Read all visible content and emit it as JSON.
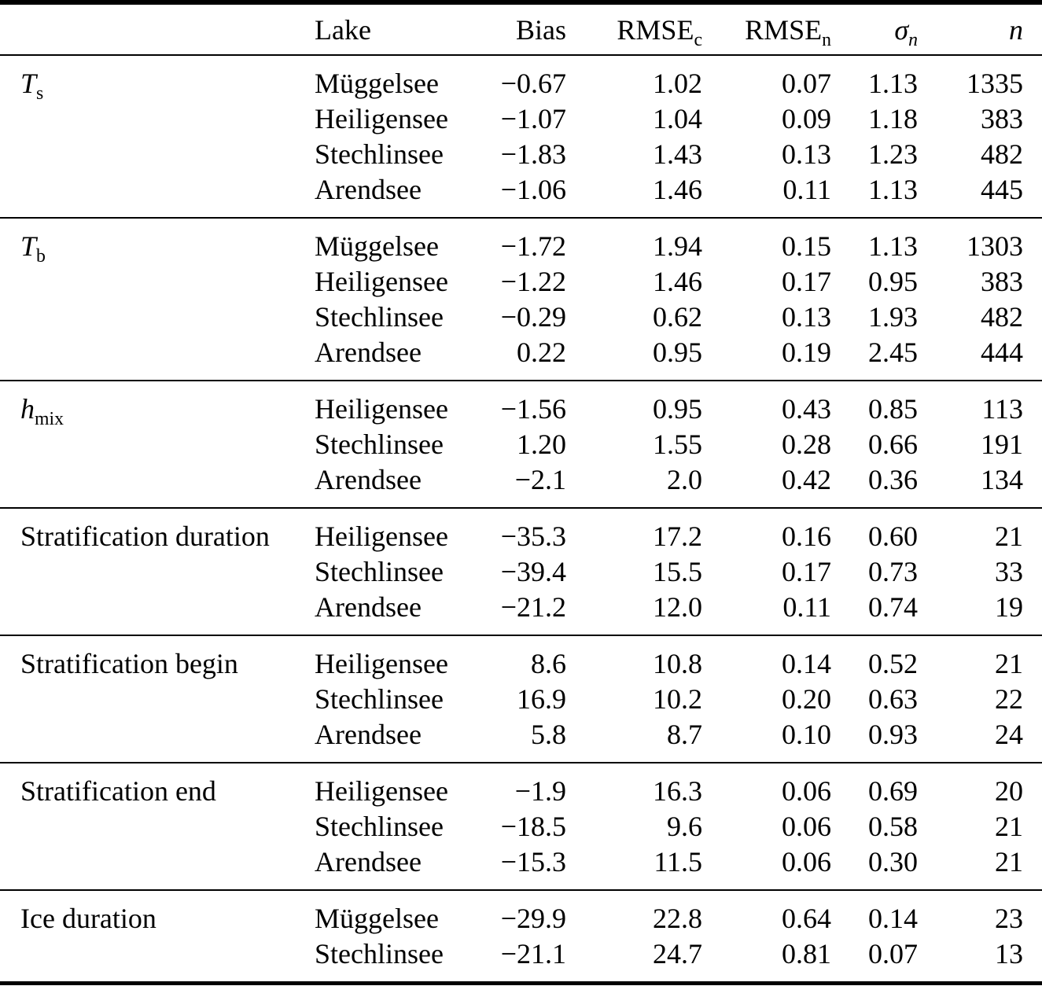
{
  "header": {
    "variable": "",
    "lake": "Lake",
    "bias": "Bias",
    "rmse_c": {
      "base": "RMSE",
      "sub": "c"
    },
    "rmse_n": {
      "base": "RMSE",
      "sub": "n"
    },
    "sigma_n": {
      "base": "σ",
      "sub": "n"
    },
    "n": "n"
  },
  "sections": [
    {
      "variable": {
        "base": "T",
        "sub": "s"
      },
      "rows": [
        {
          "lake": "Müggelsee",
          "bias": "−0.67",
          "rmse_c": "1.02",
          "rmse_n": "0.07",
          "sigma_n": "1.13",
          "n": "1335"
        },
        {
          "lake": "Heiligensee",
          "bias": "−1.07",
          "rmse_c": "1.04",
          "rmse_n": "0.09",
          "sigma_n": "1.18",
          "n": "383"
        },
        {
          "lake": "Stechlinsee",
          "bias": "−1.83",
          "rmse_c": "1.43",
          "rmse_n": "0.13",
          "sigma_n": "1.23",
          "n": "482"
        },
        {
          "lake": "Arendsee",
          "bias": "−1.06",
          "rmse_c": "1.46",
          "rmse_n": "0.11",
          "sigma_n": "1.13",
          "n": "445"
        }
      ]
    },
    {
      "variable": {
        "base": "T",
        "sub": "b"
      },
      "rows": [
        {
          "lake": "Müggelsee",
          "bias": "−1.72",
          "rmse_c": "1.94",
          "rmse_n": "0.15",
          "sigma_n": "1.13",
          "n": "1303"
        },
        {
          "lake": "Heiligensee",
          "bias": "−1.22",
          "rmse_c": "1.46",
          "rmse_n": "0.17",
          "sigma_n": "0.95",
          "n": "383"
        },
        {
          "lake": "Stechlinsee",
          "bias": "−0.29",
          "rmse_c": "0.62",
          "rmse_n": "0.13",
          "sigma_n": "1.93",
          "n": "482"
        },
        {
          "lake": "Arendsee",
          "bias": "0.22",
          "rmse_c": "0.95",
          "rmse_n": "0.19",
          "sigma_n": "2.45",
          "n": "444"
        }
      ]
    },
    {
      "variable": {
        "base": "h",
        "sub": "mix"
      },
      "rows": [
        {
          "lake": "Heiligensee",
          "bias": "−1.56",
          "rmse_c": "0.95",
          "rmse_n": "0.43",
          "sigma_n": "0.85",
          "n": "113"
        },
        {
          "lake": "Stechlinsee",
          "bias": "1.20",
          "rmse_c": "1.55",
          "rmse_n": "0.28",
          "sigma_n": "0.66",
          "n": "191"
        },
        {
          "lake": "Arendsee",
          "bias": "−2.1",
          "rmse_c": "2.0",
          "rmse_n": "0.42",
          "sigma_n": "0.36",
          "n": "134"
        }
      ]
    },
    {
      "variable": {
        "base": "Stratification duration"
      },
      "rows": [
        {
          "lake": "Heiligensee",
          "bias": "−35.3",
          "rmse_c": "17.2",
          "rmse_n": "0.16",
          "sigma_n": "0.60",
          "n": "21"
        },
        {
          "lake": "Stechlinsee",
          "bias": "−39.4",
          "rmse_c": "15.5",
          "rmse_n": "0.17",
          "sigma_n": "0.73",
          "n": "33"
        },
        {
          "lake": "Arendsee",
          "bias": "−21.2",
          "rmse_c": "12.0",
          "rmse_n": "0.11",
          "sigma_n": "0.74",
          "n": "19"
        }
      ]
    },
    {
      "variable": {
        "base": "Stratification begin"
      },
      "rows": [
        {
          "lake": "Heiligensee",
          "bias": "8.6",
          "rmse_c": "10.8",
          "rmse_n": "0.14",
          "sigma_n": "0.52",
          "n": "21"
        },
        {
          "lake": "Stechlinsee",
          "bias": "16.9",
          "rmse_c": "10.2",
          "rmse_n": "0.20",
          "sigma_n": "0.63",
          "n": "22"
        },
        {
          "lake": "Arendsee",
          "bias": "5.8",
          "rmse_c": "8.7",
          "rmse_n": "0.10",
          "sigma_n": "0.93",
          "n": "24"
        }
      ]
    },
    {
      "variable": {
        "base": "Stratification end"
      },
      "rows": [
        {
          "lake": "Heiligensee",
          "bias": "−1.9",
          "rmse_c": "16.3",
          "rmse_n": "0.06",
          "sigma_n": "0.69",
          "n": "20"
        },
        {
          "lake": "Stechlinsee",
          "bias": "−18.5",
          "rmse_c": "9.6",
          "rmse_n": "0.06",
          "sigma_n": "0.58",
          "n": "21"
        },
        {
          "lake": "Arendsee",
          "bias": "−15.3",
          "rmse_c": "11.5",
          "rmse_n": "0.06",
          "sigma_n": "0.30",
          "n": "21"
        }
      ]
    },
    {
      "variable": {
        "base": "Ice duration"
      },
      "rows": [
        {
          "lake": "Müggelsee",
          "bias": "−29.9",
          "rmse_c": "22.8",
          "rmse_n": "0.64",
          "sigma_n": "0.14",
          "n": "23"
        },
        {
          "lake": "Stechlinsee",
          "bias": "−21.1",
          "rmse_c": "24.7",
          "rmse_n": "0.81",
          "sigma_n": "0.07",
          "n": "13"
        }
      ]
    }
  ],
  "colors": {
    "text": "#000000",
    "background": "#ffffff",
    "rule": "#000000"
  }
}
